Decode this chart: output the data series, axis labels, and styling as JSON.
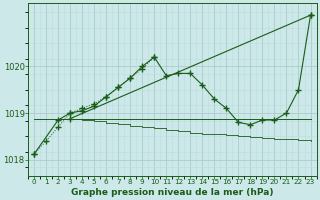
{
  "bg_color": "#cce8e8",
  "grid_color_major": "#aacccc",
  "grid_color_minor": "#bbdddd",
  "line_color": "#1a5c1a",
  "ylim": [
    1017.65,
    1021.35
  ],
  "yticks": [
    1018,
    1019,
    1020
  ],
  "xlim": [
    -0.5,
    23.5
  ],
  "xticks": [
    0,
    1,
    2,
    3,
    4,
    5,
    6,
    7,
    8,
    9,
    10,
    11,
    12,
    13,
    14,
    15,
    16,
    17,
    18,
    19,
    20,
    21,
    22,
    23
  ],
  "title": "Graphe pression niveau de la mer (hPa)",
  "title_fontsize": 6.5,
  "tick_fontsize": 5.5,
  "ytick_fontsize": 6.5,
  "series1_x": [
    0,
    2,
    3,
    4,
    5,
    6,
    7,
    8,
    9,
    10,
    11,
    12,
    13,
    14,
    15,
    16,
    17,
    18,
    19,
    20,
    21,
    22,
    23
  ],
  "series1_y": [
    1018.12,
    1018.85,
    1019.0,
    1019.05,
    1019.15,
    1019.35,
    1019.55,
    1019.75,
    1020.0,
    1020.2,
    1019.8,
    1019.85,
    1019.85,
    1019.6,
    1019.3,
    1019.1,
    1018.8,
    1018.75,
    1018.85,
    1018.85,
    1019.0,
    1019.5,
    1021.1
  ],
  "series2_x": [
    0,
    1,
    2,
    3,
    4,
    5,
    6,
    7,
    8,
    9,
    10,
    11,
    12,
    13,
    14,
    15,
    16,
    17,
    18,
    19,
    20,
    21,
    22,
    23
  ],
  "series2_y": [
    1018.88,
    1018.88,
    1018.88,
    1018.88,
    1018.88,
    1018.88,
    1018.88,
    1018.88,
    1018.88,
    1018.88,
    1018.88,
    1018.88,
    1018.88,
    1018.88,
    1018.88,
    1018.88,
    1018.88,
    1018.88,
    1018.88,
    1018.88,
    1018.88,
    1018.88,
    1018.88,
    1018.88
  ],
  "series3_x": [
    2,
    3,
    4,
    5,
    6,
    7,
    8,
    9,
    10,
    11,
    12,
    13,
    14,
    15,
    16,
    17,
    18,
    19,
    20,
    21,
    22,
    23
  ],
  "series3_y": [
    1018.88,
    1018.88,
    1018.85,
    1018.82,
    1018.79,
    1018.76,
    1018.73,
    1018.7,
    1018.67,
    1018.64,
    1018.61,
    1018.58,
    1018.56,
    1018.54,
    1018.52,
    1018.5,
    1018.48,
    1018.46,
    1018.44,
    1018.44,
    1018.42,
    1018.4
  ],
  "series4_x": [
    3,
    23
  ],
  "series4_y": [
    1018.88,
    1021.1
  ],
  "series5_x": [
    0,
    1,
    2,
    3,
    4,
    5,
    6,
    7,
    8,
    9,
    10
  ],
  "series5_y": [
    1018.12,
    1018.4,
    1018.7,
    1019.0,
    1019.1,
    1019.2,
    1019.35,
    1019.55,
    1019.75,
    1019.95,
    1020.2
  ]
}
